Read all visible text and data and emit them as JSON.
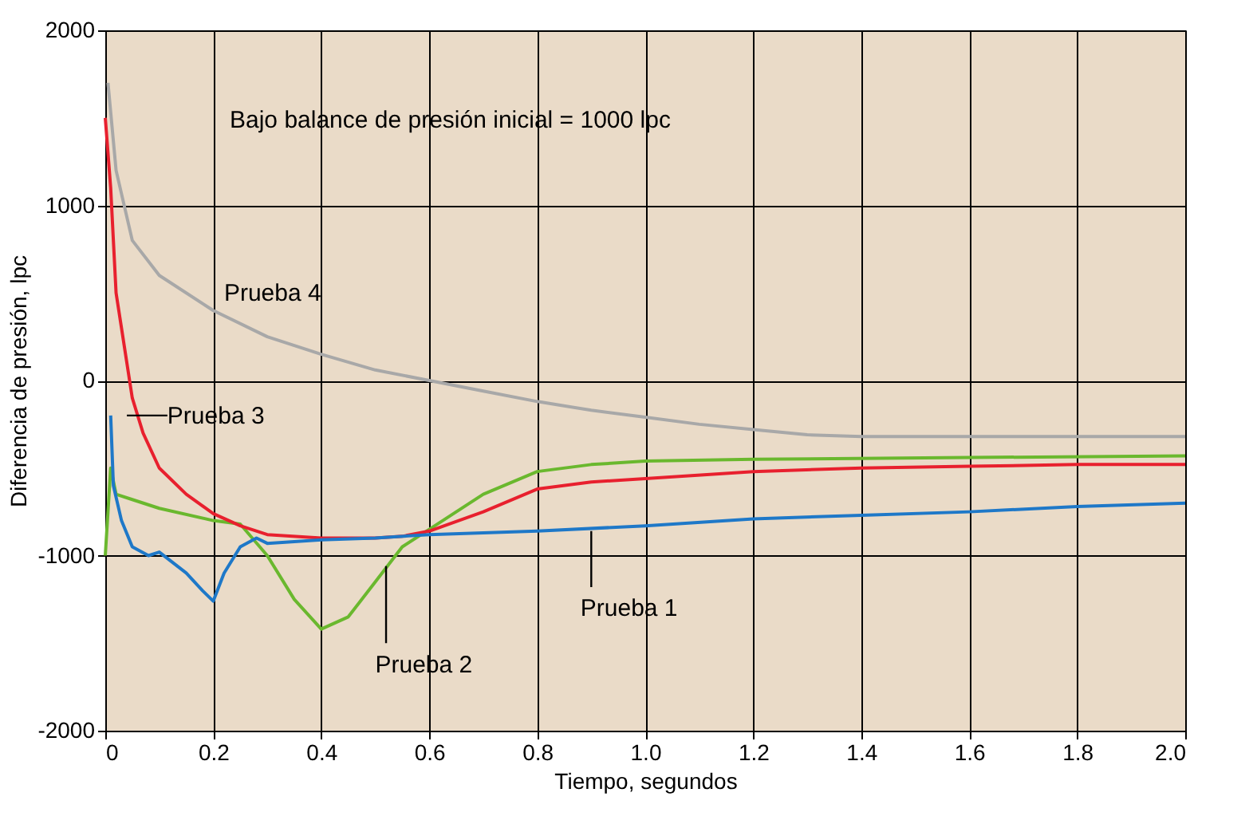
{
  "chart_data": {
    "type": "line",
    "xlabel": "Tiempo, segundos",
    "ylabel": "Diferencia de presión, lpc",
    "annotations": [
      "Bajo balance de presión inicial = 1000 lpc"
    ],
    "xlim": [
      0,
      2
    ],
    "ylim": [
      -2000,
      2000
    ],
    "xticks": [
      0,
      0.2,
      0.4,
      0.6,
      0.8,
      {
        "value": 1,
        "label": "1.0"
      },
      1.2,
      1.4,
      1.6,
      1.8,
      {
        "value": 2,
        "label": "2.0"
      }
    ],
    "yticks": [
      -2000,
      -1000,
      0,
      1000,
      2000
    ],
    "grid": true,
    "legend": false,
    "marker": "none",
    "line_style": "solid",
    "series": [
      {
        "name": "Prueba 1",
        "color": "#1e78c8",
        "x": [
          0.01,
          0.015,
          0.03,
          0.05,
          0.08,
          0.1,
          0.15,
          0.18,
          0.2,
          0.22,
          0.25,
          0.28,
          0.3,
          0.4,
          0.5,
          0.6,
          0.8,
          1.0,
          1.2,
          1.4,
          1.6,
          1.8,
          2.0
        ],
        "values": [
          -200,
          -600,
          -800,
          -950,
          -1000,
          -980,
          -1100,
          -1200,
          -1260,
          -1100,
          -950,
          -900,
          -930,
          -910,
          -900,
          -880,
          -860,
          -830,
          -790,
          -770,
          -750,
          -720,
          -700
        ]
      },
      {
        "name": "Prueba 2",
        "color": "#6ab82e",
        "x": [
          0,
          0.01,
          0.02,
          0.05,
          0.1,
          0.2,
          0.25,
          0.3,
          0.35,
          0.4,
          0.45,
          0.5,
          0.55,
          0.6,
          0.7,
          0.8,
          0.9,
          1.0,
          1.2,
          1.6,
          2.0
        ],
        "values": [
          -1000,
          -500,
          -650,
          -680,
          -730,
          -800,
          -820,
          -1000,
          -1250,
          -1420,
          -1350,
          -1150,
          -950,
          -850,
          -650,
          -520,
          -480,
          -460,
          -450,
          -440,
          -430
        ]
      },
      {
        "name": "Prueba 3",
        "color": "#e8202e",
        "x": [
          0,
          0.01,
          0.02,
          0.03,
          0.05,
          0.07,
          0.1,
          0.15,
          0.2,
          0.25,
          0.3,
          0.4,
          0.5,
          0.55,
          0.6,
          0.7,
          0.8,
          0.9,
          1.0,
          1.2,
          1.4,
          1.6,
          1.8,
          2.0
        ],
        "values": [
          1500,
          1100,
          500,
          300,
          -100,
          -300,
          -500,
          -650,
          -760,
          -830,
          -880,
          -900,
          -900,
          -890,
          -860,
          -750,
          -620,
          -580,
          -560,
          -520,
          -500,
          -490,
          -480,
          -480
        ]
      },
      {
        "name": "Prueba 4",
        "color": "#a8a8a8",
        "x": [
          0.005,
          0.02,
          0.05,
          0.1,
          0.2,
          0.3,
          0.4,
          0.5,
          0.6,
          0.7,
          0.8,
          0.9,
          1.0,
          1.1,
          1.2,
          1.3,
          1.4,
          1.6,
          1.8,
          2.0
        ],
        "values": [
          1700,
          1200,
          800,
          600,
          400,
          250,
          150,
          60,
          0,
          -60,
          -120,
          -170,
          -210,
          -250,
          -280,
          -310,
          -320,
          -320,
          -320,
          -320
        ]
      }
    ]
  }
}
